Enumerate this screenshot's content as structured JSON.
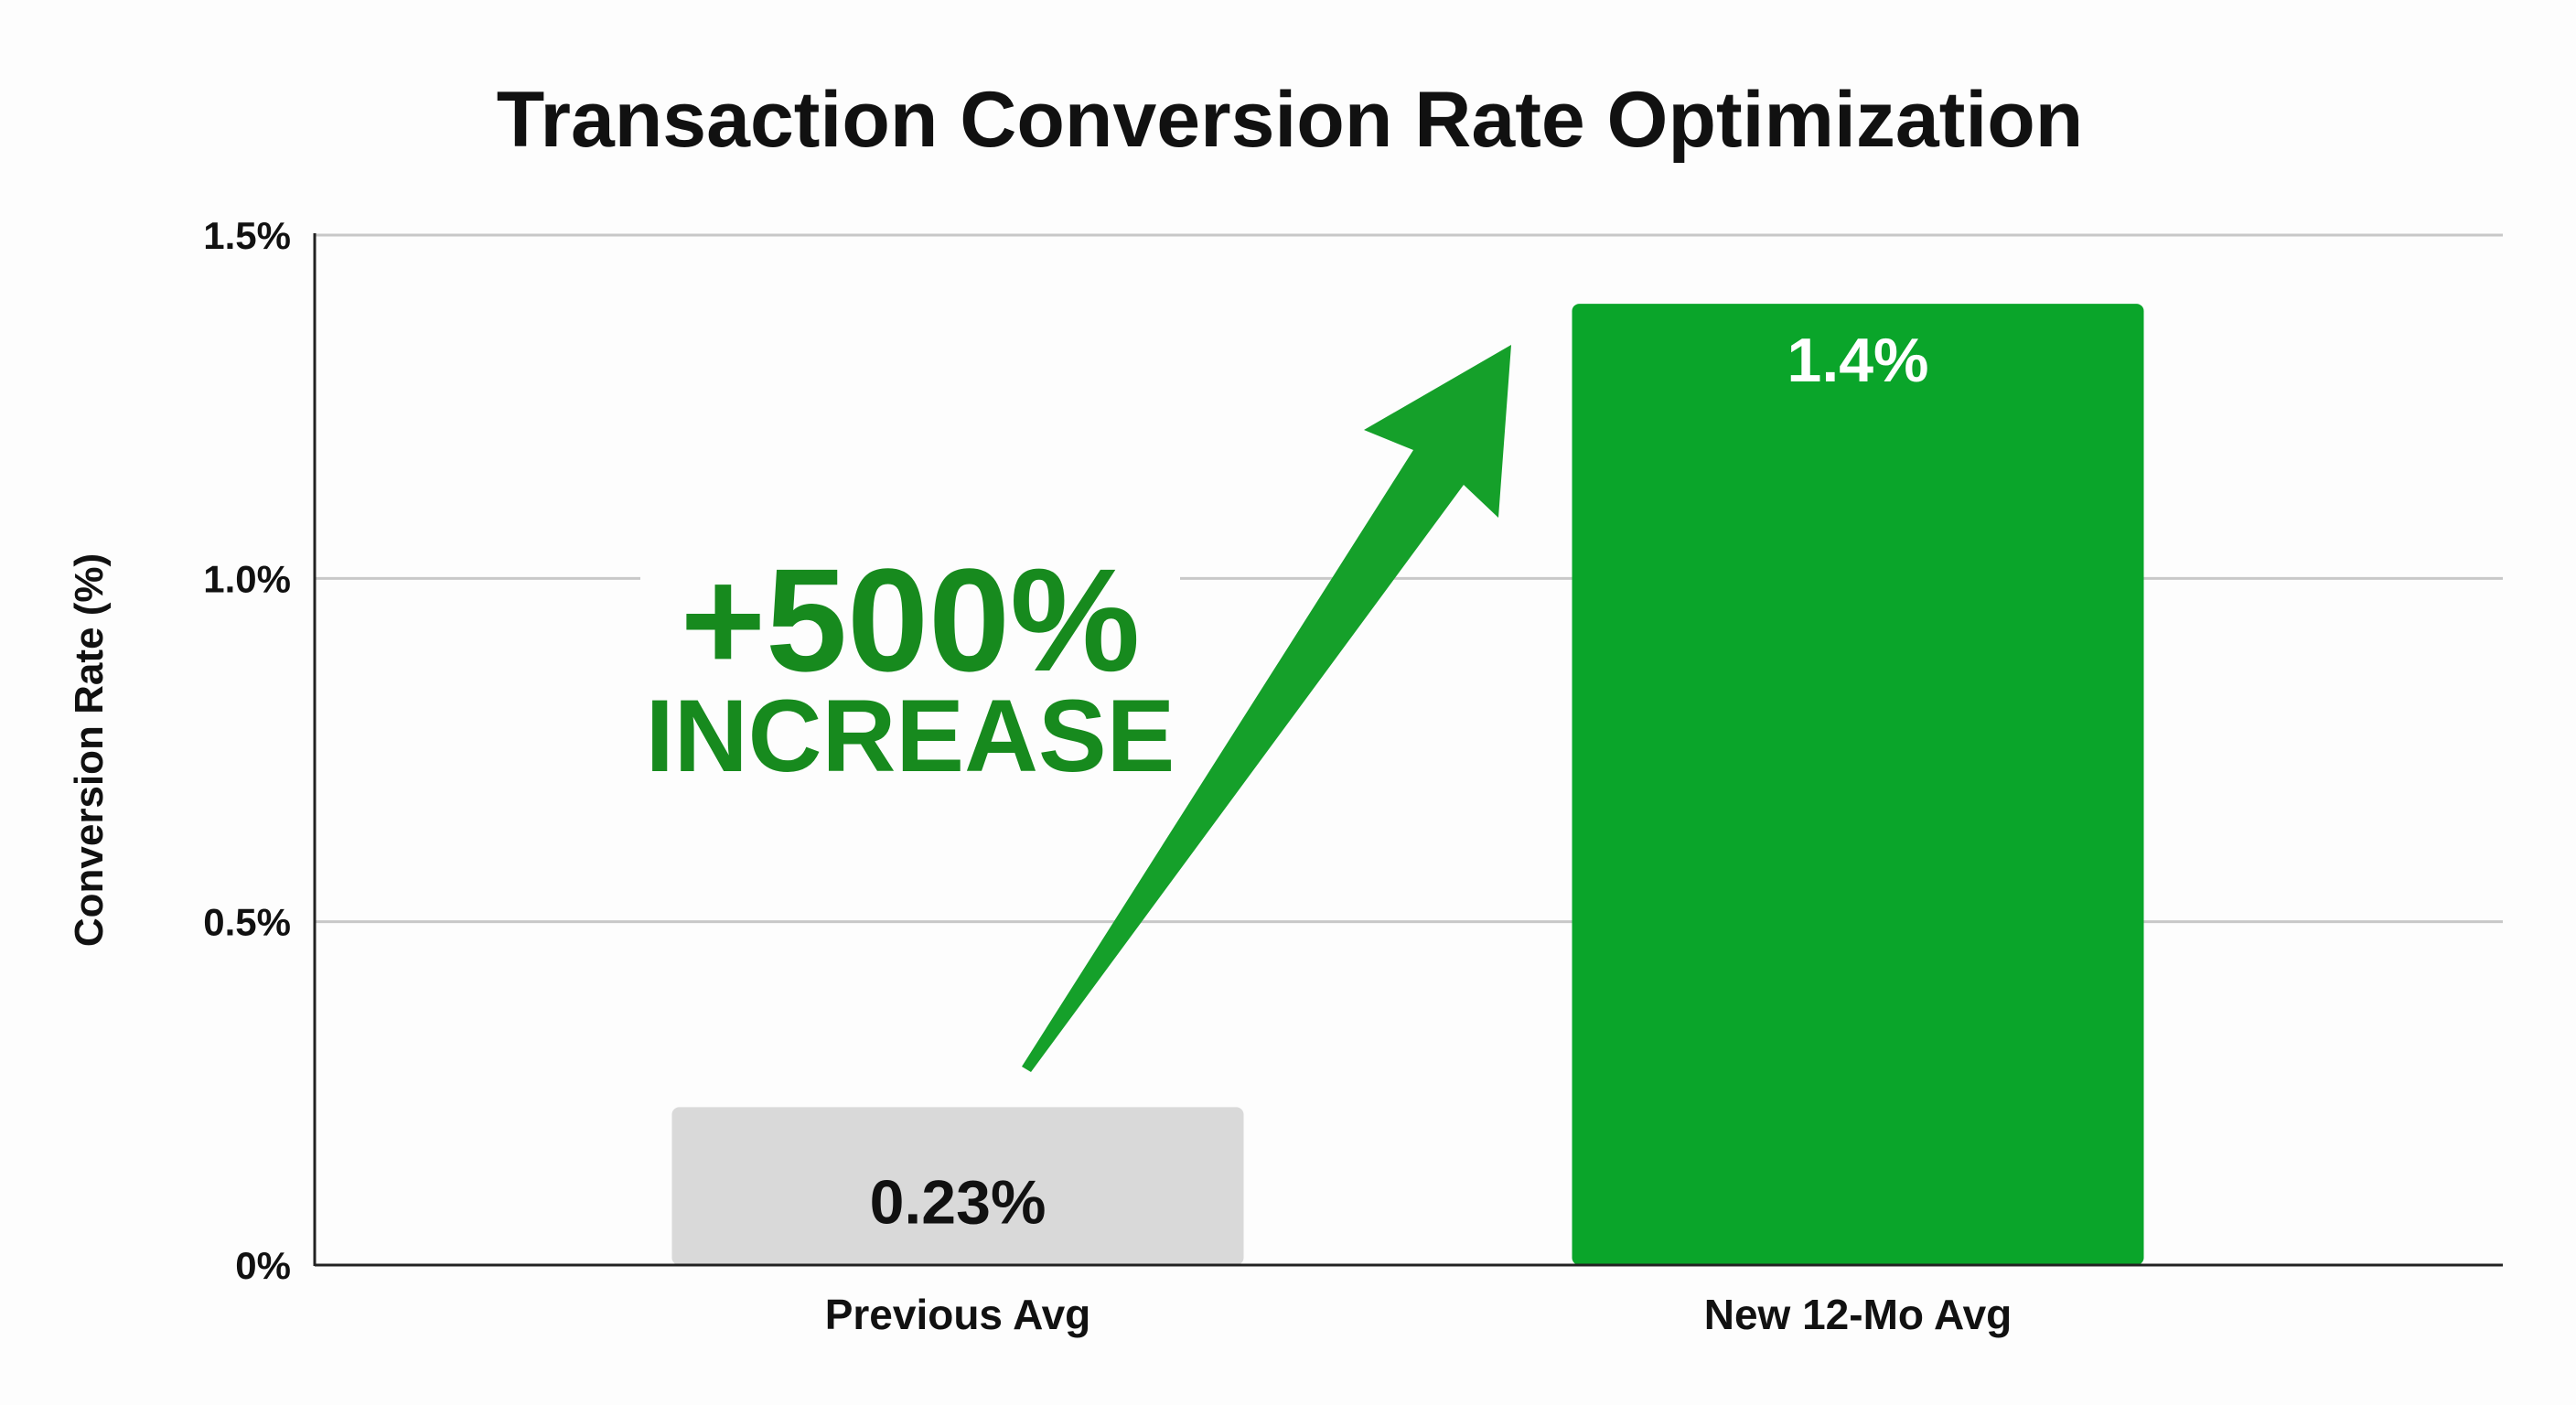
{
  "chart_data": {
    "type": "bar",
    "title": "Transaction Conversion Rate Optimization",
    "xlabel": "",
    "ylabel": "Conversion Rate (%)",
    "ylim": [
      0,
      1.5
    ],
    "yticks": [
      0,
      0.5,
      1.0,
      1.5
    ],
    "ytick_labels": [
      "0%",
      "0.5%",
      "1.0%",
      "1.5%"
    ],
    "grid": true,
    "categories": [
      "Previous Avg",
      "New 12-Mo Avg"
    ],
    "values": [
      0.23,
      1.4
    ],
    "data_labels": [
      "0.23%",
      "1.4%"
    ],
    "colors": [
      "#d9d9d9",
      "#0aa52a"
    ],
    "label_colors": [
      "#111111",
      "#ffffff"
    ],
    "annotation": {
      "line1": "+500%",
      "line2": "INCREASE",
      "color": "#178a1e",
      "arrow_color": "#15a02a"
    }
  }
}
